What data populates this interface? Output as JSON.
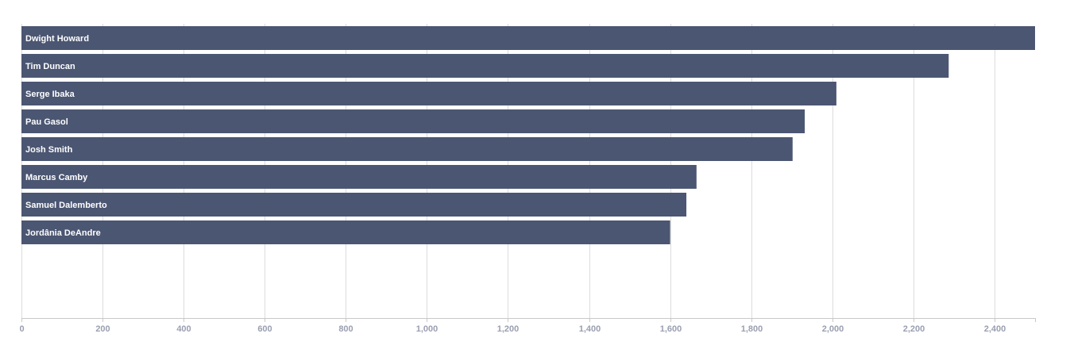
{
  "chart_data": {
    "type": "bar",
    "orientation": "horizontal",
    "categories": [
      "Dwight Howard",
      "Tim Duncan",
      "Serge Ibaka",
      "Pau Gasol",
      "Josh Smith",
      "Marcus Camby",
      "Samuel Dalemberto",
      "Jordânia DeAndre"
    ],
    "values": [
      2500,
      2287,
      2010,
      1932,
      1902,
      1665,
      1640,
      1600
    ],
    "x_ticks": [
      "0",
      "200",
      "400",
      "600",
      "800",
      "1,000",
      "1,200",
      "1,400",
      "1,600",
      "1,800",
      "2,000",
      "2,200",
      "2,400"
    ],
    "xlim": [
      0,
      2500
    ],
    "grid": true,
    "bar_color": "#4b5672",
    "label_color": "#ffffff",
    "tick_color": "#9a9fb0",
    "grid_color": "#dcdcdc"
  }
}
